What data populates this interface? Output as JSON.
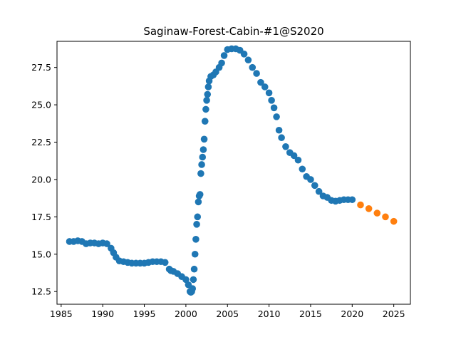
{
  "chart_data": {
    "type": "scatter",
    "title": "Saginaw-Forest-Cabin-#1@S2020",
    "xlabel": "",
    "ylabel": "",
    "xlim": [
      1984.5,
      2027.0
    ],
    "ylim": [
      11.65,
      29.25
    ],
    "xticks": [
      1985,
      1990,
      1995,
      2000,
      2005,
      2010,
      2015,
      2020,
      2025
    ],
    "xtick_labels": [
      "1985",
      "1990",
      "1995",
      "2000",
      "2005",
      "2010",
      "2015",
      "2020",
      "2025"
    ],
    "yticks": [
      12.5,
      15.0,
      17.5,
      20.0,
      22.5,
      25.0,
      27.5
    ],
    "ytick_labels": [
      "12.5",
      "15.0",
      "17.5",
      "20.0",
      "22.5",
      "25.0",
      "27.5"
    ],
    "grid": false,
    "legend": "none",
    "series": [
      {
        "color": "#1f77b4",
        "x": [
          1986.0,
          1986.5,
          1987.0,
          1987.5,
          1988.0,
          1988.5,
          1989.0,
          1989.5,
          1990.0,
          1990.5,
          1991.0,
          1991.3,
          1991.6,
          1992.0,
          1992.5,
          1993.0,
          1993.5,
          1994.0,
          1994.5,
          1995.0,
          1995.5,
          1996.0,
          1996.5,
          1997.0,
          1997.5,
          1998.0,
          1998.2,
          1998.5,
          1999.0,
          1999.5,
          2000.0,
          2000.3,
          2000.5,
          2000.6,
          2000.7,
          2000.8,
          2000.9,
          2001.0,
          2001.1,
          2001.2,
          2001.3,
          2001.4,
          2001.5,
          2001.6,
          2001.7,
          2001.8,
          2001.9,
          2002.0,
          2002.1,
          2002.2,
          2002.3,
          2002.4,
          2002.5,
          2002.6,
          2002.7,
          2002.8,
          2003.0,
          2003.3,
          2003.6,
          2004.0,
          2004.3,
          2004.6,
          2005.0,
          2005.5,
          2006.0,
          2006.5,
          2007.0,
          2007.5,
          2008.0,
          2008.5,
          2009.0,
          2009.5,
          2010.0,
          2010.3,
          2010.6,
          2010.9,
          2011.2,
          2011.5,
          2012.0,
          2012.5,
          2013.0,
          2013.5,
          2014.0,
          2014.5,
          2015.0,
          2015.5,
          2016.0,
          2016.5,
          2017.0,
          2017.5,
          2018.0,
          2018.5,
          2019.0,
          2019.5,
          2020.0
        ],
        "y": [
          15.85,
          15.85,
          15.9,
          15.85,
          15.7,
          15.75,
          15.75,
          15.7,
          15.75,
          15.7,
          15.4,
          15.1,
          14.8,
          14.55,
          14.5,
          14.45,
          14.4,
          14.4,
          14.4,
          14.4,
          14.45,
          14.5,
          14.5,
          14.5,
          14.45,
          14.0,
          13.9,
          13.85,
          13.7,
          13.5,
          13.3,
          12.95,
          12.5,
          12.45,
          12.5,
          12.7,
          13.3,
          14.0,
          15.0,
          16.0,
          17.0,
          17.5,
          18.5,
          18.9,
          19.0,
          20.4,
          21.0,
          21.5,
          22.0,
          22.7,
          23.9,
          24.7,
          25.3,
          25.7,
          26.2,
          26.6,
          26.9,
          27.0,
          27.2,
          27.5,
          27.8,
          28.3,
          28.7,
          28.75,
          28.75,
          28.65,
          28.4,
          28.0,
          27.5,
          27.1,
          26.5,
          26.2,
          25.8,
          25.3,
          24.8,
          24.2,
          23.3,
          22.8,
          22.2,
          21.8,
          21.6,
          21.3,
          20.7,
          20.2,
          20.0,
          19.6,
          19.2,
          18.9,
          18.8,
          18.6,
          18.55,
          18.6,
          18.65,
          18.65,
          18.65
        ]
      },
      {
        "color": "#ff7f0e",
        "x": [
          2021,
          2022,
          2023,
          2024,
          2025
        ],
        "y": [
          18.3,
          18.05,
          17.75,
          17.5,
          17.2
        ]
      }
    ]
  }
}
